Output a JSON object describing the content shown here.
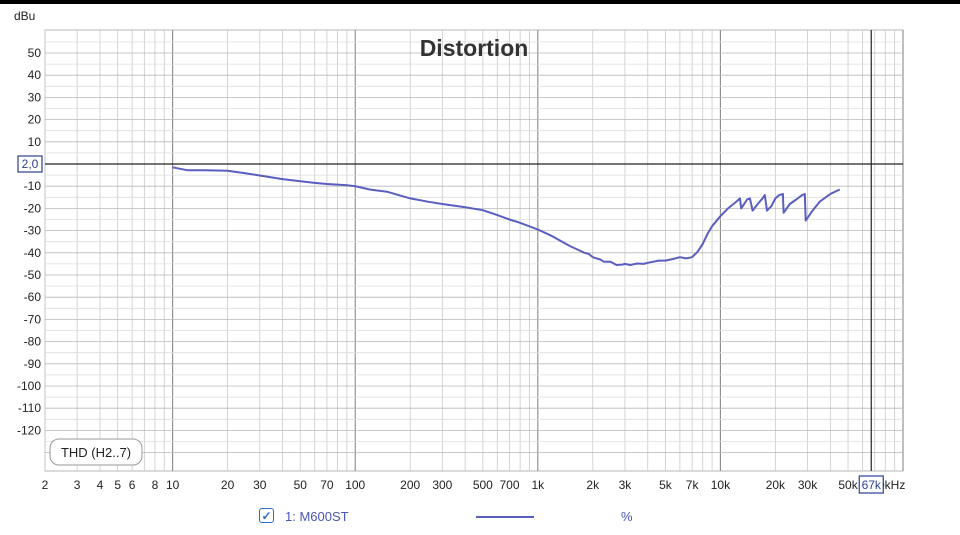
{
  "chart_data": {
    "type": "line",
    "title": "Distortion",
    "y_unit_label": "dBu",
    "x_unit_label": "kHz",
    "x_scale": "log",
    "xlim": [
      2,
      100000
    ],
    "ylim": [
      -130,
      55
    ],
    "grid": true,
    "y_ticks": [
      50,
      40,
      30,
      20,
      10,
      -10,
      -20,
      -30,
      -40,
      -50,
      -60,
      -70,
      -80,
      -90,
      -100,
      -110,
      -120
    ],
    "y_cursor": {
      "value": 0,
      "label": "2,0"
    },
    "x_ticks": [
      {
        "v": 2,
        "label": "2"
      },
      {
        "v": 3,
        "label": "3"
      },
      {
        "v": 4,
        "label": "4"
      },
      {
        "v": 5,
        "label": "5"
      },
      {
        "v": 6,
        "label": "6"
      },
      {
        "v": 8,
        "label": "8"
      },
      {
        "v": 10,
        "label": "10"
      },
      {
        "v": 20,
        "label": "20"
      },
      {
        "v": 30,
        "label": "30"
      },
      {
        "v": 50,
        "label": "50"
      },
      {
        "v": 70,
        "label": "70"
      },
      {
        "v": 100,
        "label": "100"
      },
      {
        "v": 200,
        "label": "200"
      },
      {
        "v": 300,
        "label": "300"
      },
      {
        "v": 500,
        "label": "500"
      },
      {
        "v": 700,
        "label": "700"
      },
      {
        "v": 1000,
        "label": "1k"
      },
      {
        "v": 2000,
        "label": "2k"
      },
      {
        "v": 3000,
        "label": "3k"
      },
      {
        "v": 5000,
        "label": "5k"
      },
      {
        "v": 7000,
        "label": "7k"
      },
      {
        "v": 10000,
        "label": "10k"
      },
      {
        "v": 20000,
        "label": "20k"
      },
      {
        "v": 30000,
        "label": "30k"
      },
      {
        "v": 50000,
        "label": "50k"
      },
      {
        "v": 100000,
        "label": "100kHz"
      }
    ],
    "x_cursor": {
      "value": 67000,
      "label": "67k"
    },
    "annotation": "THD (H2..7)",
    "series": [
      {
        "name": "1: M600ST",
        "unit": "%",
        "color": "#5a5ebf",
        "x": [
          10,
          12,
          15,
          20,
          25,
          30,
          40,
          50,
          60,
          70,
          80,
          90,
          100,
          120,
          150,
          200,
          250,
          300,
          400,
          500,
          600,
          700,
          800,
          1000,
          1200,
          1500,
          1700,
          1800,
          1900,
          2000,
          2100,
          2200,
          2300,
          2500,
          2700,
          2900,
          3000,
          3200,
          3500,
          3800,
          4000,
          4300,
          4600,
          5000,
          5500,
          6000,
          6500,
          7000,
          7500,
          8000,
          8500,
          9000,
          10000,
          11000,
          12000,
          12800,
          13000,
          14000,
          14500,
          15000,
          16000,
          17000,
          17500,
          18000,
          19000,
          20000,
          21000,
          22000,
          22200,
          24000,
          26000,
          28000,
          29000,
          29300,
          32000,
          35000,
          40000,
          45000
        ],
        "y": [
          -1.5,
          -2.8,
          -2.8,
          -3,
          -4.2,
          -5.2,
          -6.8,
          -7.8,
          -8.5,
          -9,
          -9.3,
          -9.6,
          -10,
          -11.5,
          -12.5,
          -15.5,
          -17,
          -18,
          -19.5,
          -20.8,
          -23,
          -25,
          -26.5,
          -29.5,
          -32.5,
          -37,
          -39,
          -40,
          -40.5,
          -42,
          -42.5,
          -43,
          -44,
          -44,
          -45.5,
          -45.3,
          -45,
          -45.5,
          -44.8,
          -45,
          -44.5,
          -44,
          -43.5,
          -43.5,
          -42.8,
          -42,
          -42.5,
          -42,
          -39.5,
          -36,
          -31.5,
          -28,
          -23.5,
          -20,
          -17.5,
          -15.5,
          -20,
          -16,
          -15.5,
          -21,
          -18,
          -15.5,
          -14,
          -21,
          -19,
          -15.5,
          -14,
          -13.5,
          -22,
          -18,
          -16,
          -14,
          -13.5,
          -25.5,
          -21,
          -17,
          -13.5,
          -11.5
        ]
      }
    ]
  }
}
